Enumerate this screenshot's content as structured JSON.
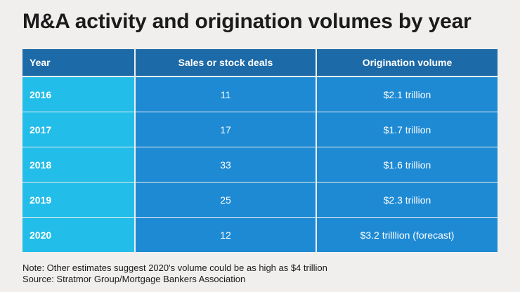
{
  "title": "M&A activity and origination volumes by year",
  "chart_data": {
    "type": "table",
    "title": "M&A activity and origination volumes by year",
    "columns": [
      "Year",
      "Sales or stock deals",
      "Origination volume"
    ],
    "rows": [
      {
        "year": "2016",
        "deals": "11",
        "volume": "$2.1 trillion"
      },
      {
        "year": "2017",
        "deals": "17",
        "volume": "$1.7 trillion"
      },
      {
        "year": "2018",
        "deals": "33",
        "volume": "$1.6 trillion"
      },
      {
        "year": "2019",
        "deals": "25",
        "volume": "$2.3 trillion"
      },
      {
        "year": "2020",
        "deals": "12",
        "volume": "$3.2 trilllion (forecast)"
      }
    ],
    "x": [
      "2016",
      "2017",
      "2018",
      "2019",
      "2020"
    ],
    "series": [
      {
        "name": "Sales or stock deals",
        "values": [
          11,
          17,
          33,
          25,
          12
        ]
      },
      {
        "name": "Origination volume ($ trillion)",
        "values": [
          2.1,
          1.7,
          1.6,
          2.3,
          3.2
        ]
      }
    ]
  },
  "notes": {
    "note": "Note: Other estimates suggest 2020's volume could be as high as $4 trillion",
    "source": "Source: Stratmor Group/Mortgage Bankers Association"
  },
  "colors": {
    "header_bg": "#1d6aa8",
    "year_bg": "#22bde8",
    "cell_bg": "#1e8ad4",
    "page_bg": "#f0efed"
  }
}
